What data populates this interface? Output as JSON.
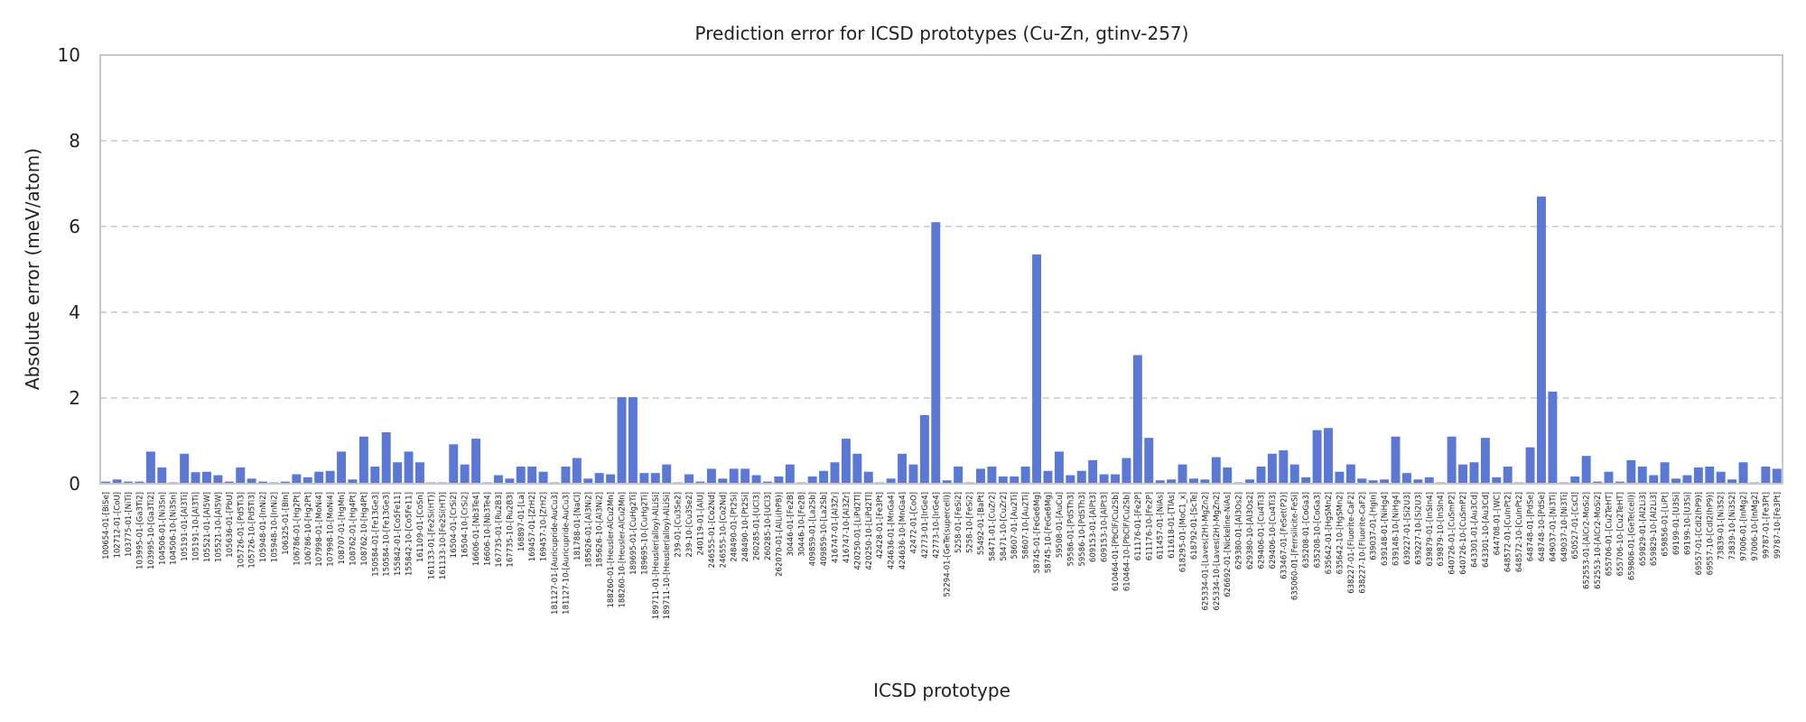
{
  "chart_data": {
    "type": "bar",
    "title": "Prediction error for ICSD prototypes (Cu-Zn, gtinv-257)",
    "xlabel": "ICSD prototype",
    "ylabel": "Absolute error (meV/atom)",
    "ylim": [
      0,
      10
    ],
    "yticks": [
      "0",
      "2",
      "4",
      "6",
      "8",
      "10"
    ],
    "grid": "y",
    "bar_color": "#5b79d4",
    "categories": [
      "100654-01-[BiSe]",
      "102712-01-[CoU]",
      "103775-01-[NiTi]",
      "103995-01-[Ga3Ti2]",
      "103995-10-[Ga3Ti2]",
      "104506-01-[Ni3Sn]",
      "104506-10-[Ni3Sn]",
      "105191-01-[Al3Ti]",
      "105191-10-[Al3Ti]",
      "105521-01-[Al5W]",
      "105521-10-[Al5W]",
      "105636-01-[PbU]",
      "105726-01-[Pd5Ti3]",
      "105726-10-[Pd5Ti3]",
      "105948-01-[InNi2]",
      "105948-10-[InNi2]",
      "106325-01-[BIn]",
      "106786-01-[Hg2Pt]",
      "106786-10-[Hg2Pt]",
      "107998-01-[MoNi4]",
      "107998-10-[MoNi4]",
      "108707-01-[HgMn]",
      "108762-01-[Hg4Pt]",
      "108762-10-[Hg4Pt]",
      "150584-01-[Fe13Ge3]",
      "150584-10-[Fe13Ge3]",
      "155842-01-[Co5Fe11]",
      "155842-10-[Co5Fe11]",
      "161109-01-[CoSn]",
      "161133-01-[Fe2Si(HT)]",
      "161133-10-[Fe2Si(HT)]",
      "16504-01-[CrSi2]",
      "16504-10-[CrSi2]",
      "16606-01-[Nb3Te4]",
      "16606-10-[Nb3Te4]",
      "167735-01-[Ru2B3]",
      "167735-10-[Ru2B3]",
      "168897-01-[La]",
      "169457-01-[ZrH2]",
      "169457-10-[ZrH2]",
      "181127-01-[Auricupride-AuCu3]",
      "181127-10-[Auricupride-AuCu3]",
      "181788-01-[NaCl]",
      "185626-01-[Al3Ni2]",
      "185626-10-[Al3Ni2]",
      "188260-01-[Heusler-AlCu2Mn]",
      "188260-10-[Heusler-AlCu2Mn]",
      "189695-01-[CuHg2Ti]",
      "189695-10-[CuHg2Ti]",
      "189711-01-[Heusler(alloy)-AlLiSi]",
      "189711-10-[Heusler(alloy)-AlLiSi]",
      "239-01-[Cu3Se2]",
      "239-10-[Cu3Se2]",
      "240119-01-[AlU]",
      "246555-01-[Co2Nd]",
      "246555-10-[Co2Nd]",
      "248490-01-[Pt2Si]",
      "248490-10-[Pt2Si]",
      "260285-01-[UCl3]",
      "260285-10-[UCl3]",
      "262070-01-[AlLi(hP8)]",
      "30446-01-[Fe2B]",
      "30446-10-[Fe2B]",
      "409859-01-[La2Sb]",
      "409859-10-[La2Sb]",
      "416747-01-[Al3Zr]",
      "416747-10-[Al3Zr]",
      "420250-01-[LiPd2Tl]",
      "420250-10-[LiPd2Tl]",
      "42428-01-[Fe3Pt]",
      "424636-01-[MnGa4]",
      "424636-10-[MnGa4]",
      "42472-01-[CoO]",
      "42773-01-[IrGe4]",
      "42773-10-[IrGe4]",
      "52294-01-[GeTe(supercell)]",
      "5258-01-[FeSi2]",
      "5258-10-[FeSi2]",
      "55492-01-[BaPt]",
      "58471-01-[CuZr2]",
      "58471-10-[CuZr2]",
      "58607-01-[Au2Ti]",
      "58607-10-[Au2Ti]",
      "58745-01-[FeGe6Mg]",
      "58745-10-[FeGe6Mg]",
      "59508-01-[AuCu]",
      "59586-01-[PdSTh3]",
      "59586-10-[PdSTh3]",
      "609153-01-[AlPt3]",
      "609153-10-[AlPt3]",
      "610464-01-[PbClF/Cu2Sb]",
      "610464-10-[PbClF/Cu2Sb]",
      "611176-01-[Fe2P]",
      "611176-10-[Fe2P]",
      "611457-01-[NiAs]",
      "611618-01-[TlAs]",
      "618295-01-[MoC1_x]",
      "618792-01-[ScTe]",
      "625334-01-[Laves(2H)-MgZn2]",
      "625334-10-[Laves(2H)-MgZn2]",
      "626692-01-[Nickeline-NiAs]",
      "629380-01-[Al3Os2]",
      "629380-10-[Al3Os2]",
      "629406-01-[Cu4Ti3]",
      "629406-10-[Cu4Ti3]",
      "633467-01-[FeSet(P2)]",
      "635060-01-[Ferrsilicite-FeSi]",
      "635208-01-[CoGa3]",
      "635208-10-[CoGa3]",
      "635642-01-[HgSMn2]",
      "635642-10-[HgSMn2]",
      "638227-01-[Fluorite-CaF2]",
      "638227-10-[Fluorite-CaF2]",
      "639037-01-[HgIn]",
      "639148-01-[NiHg4]",
      "639148-10-[NiHg4]",
      "639227-01-[Si2U3]",
      "639227-10-[Si2U3]",
      "639879-01-[InSIn4]",
      "639879-10-[InSIn4]",
      "640726-01-[CuSmP2]",
      "640726-10-[CuSmP2]",
      "643301-01-[Au3Cd]",
      "643301-10-[Au3Cd]",
      "644708-01-[WC]",
      "648572-01-[CuInPt2]",
      "648572-10-[CuInPt2]",
      "648748-01-[PdSe]",
      "648748-10-[PdSe]",
      "649037-01-[Ni3Ti]",
      "649037-10-[Ni3Ti]",
      "650527-01-[CsCl]",
      "652553-01-[AlCr2-MoSi2]",
      "652553-10-[AlCr2-MoSi2]",
      "655706-01-[Cu2TeHT]",
      "655706-10-[Cu2TeHT]",
      "659806-01-[GeTe(cell)]",
      "659829-01-[Al2Li3]",
      "659829-10-[Al2Li3]",
      "659856-01-[LiPt]",
      "69199-01-[U3Si]",
      "69199-10-[U3Si]",
      "69557-01-[CdI2(hP9)]",
      "69557-10-[CdI2(hP9)]",
      "73839-01-[Ni3S2]",
      "73839-10-[Ni3S2]",
      "97006-01-[InMg2]",
      "97006-10-[InMg2]",
      "99787-01-[Fe3Pt]",
      "99787-10-[Fe3Pt]"
    ],
    "values": [
      0.05,
      0.1,
      0.05,
      0.05,
      0.75,
      0.38,
      0.03,
      0.7,
      0.27,
      0.28,
      0.2,
      0.05,
      0.38,
      0.12,
      0.05,
      0.03,
      0.05,
      0.22,
      0.15,
      0.28,
      0.3,
      0.75,
      0.1,
      1.1,
      0.4,
      1.2,
      0.5,
      0.75,
      0.5,
      0.03,
      0.03,
      0.92,
      0.45,
      1.05,
      0.03,
      0.2,
      0.12,
      0.4,
      0.4,
      0.28,
      0.03,
      0.4,
      0.6,
      0.12,
      0.25,
      0.22,
      2.02,
      2.02,
      0.25,
      0.25,
      0.45,
      0.03,
      0.22,
      0.05,
      0.35,
      0.12,
      0.35,
      0.35,
      0.2,
      0.05,
      0.17,
      0.45,
      0.03,
      0.17,
      0.3,
      0.5,
      1.05,
      0.7,
      0.28,
      0.03,
      0.12,
      0.7,
      0.45,
      1.6,
      6.1,
      0.08,
      0.4,
      0.03,
      0.35,
      0.4,
      0.17,
      0.17,
      0.4,
      5.35,
      0.3,
      0.75,
      0.2,
      0.3,
      0.55,
      0.22,
      0.22,
      0.6,
      3.0,
      1.07,
      0.08,
      0.1,
      0.45,
      0.12,
      0.1,
      0.62,
      0.38,
      0.03,
      0.1,
      0.4,
      0.7,
      0.78,
      0.45,
      0.15,
      1.25,
      1.3,
      0.28,
      0.45,
      0.12,
      0.08,
      0.1,
      1.1,
      0.25,
      0.1,
      0.15,
      0.03,
      1.1,
      0.45,
      0.5,
      1.07,
      0.15,
      0.4,
      0.03,
      0.85,
      6.7,
      2.15,
      0.03,
      0.17,
      0.65,
      0.05,
      0.28,
      0.05,
      0.55,
      0.4,
      0.2,
      0.5,
      0.12,
      0.2,
      0.38,
      0.4,
      0.28,
      0.1,
      0.5,
      0.03,
      0.4,
      0.35
    ]
  }
}
